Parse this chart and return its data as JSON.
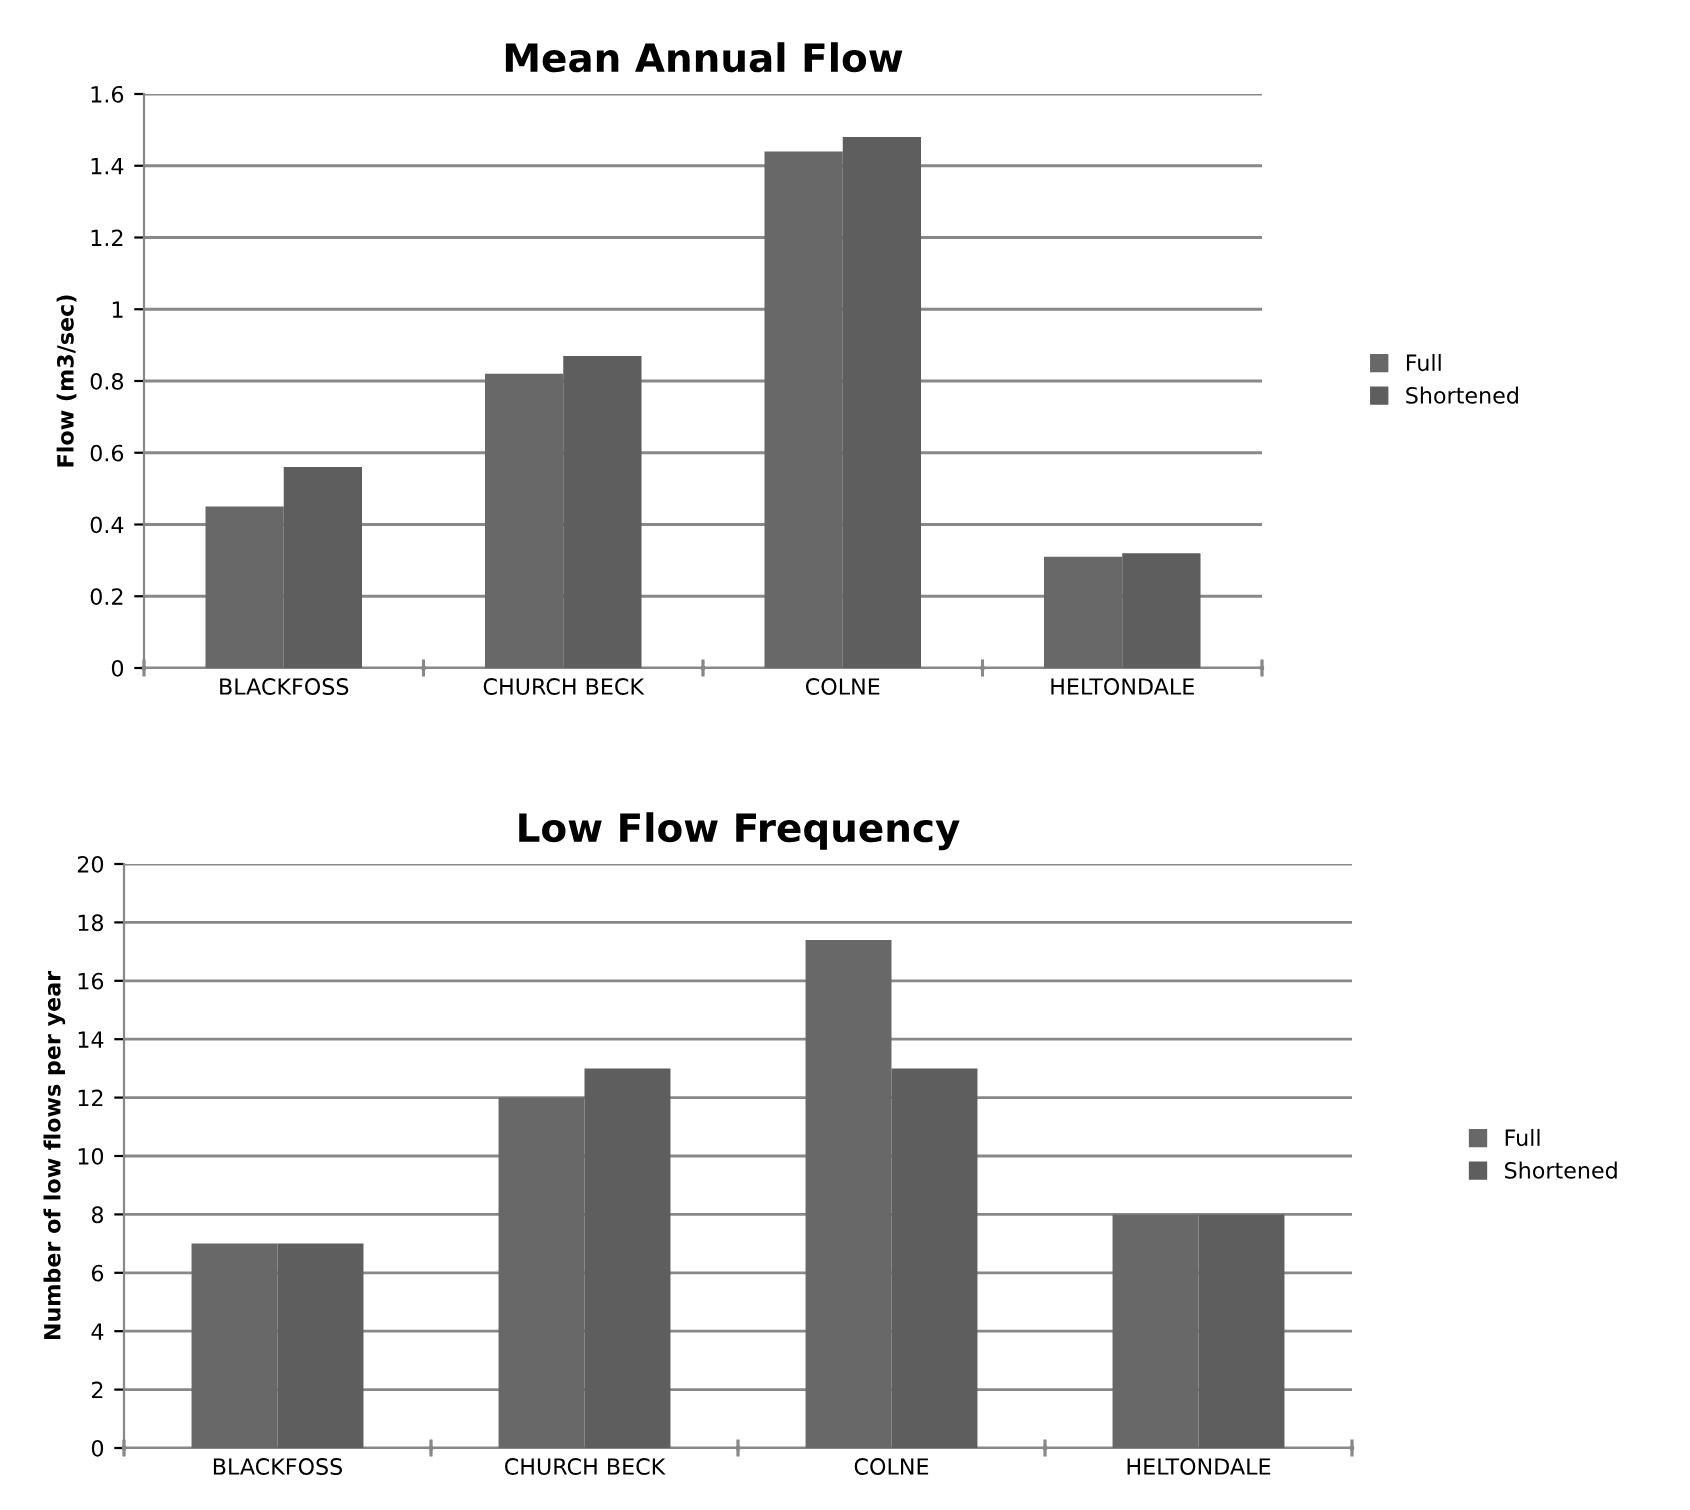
{
  "chart_data": [
    {
      "type": "bar",
      "title": "Mean Annual Flow",
      "ylabel": "Flow (m3/sec)",
      "categories": [
        "BLACKFOSS",
        "CHURCH BECK",
        "COLNE",
        "HELTONDALE"
      ],
      "series": [
        {
          "name": "Full",
          "color": "#686868",
          "values": [
            0.45,
            0.82,
            1.44,
            0.31
          ]
        },
        {
          "name": "Shortened",
          "color": "#5e5e5e",
          "values": [
            0.56,
            0.87,
            1.48,
            0.32
          ]
        }
      ],
      "ylim": [
        0,
        1.6
      ],
      "yticks": [
        0,
        {
          "value": 0.2,
          "label": "0.2"
        },
        {
          "value": 0.4,
          "label": "0.4"
        },
        {
          "value": 0.6,
          "label": "0.6"
        },
        {
          "value": 0.8,
          "label": "0.8"
        },
        1,
        {
          "value": 1.2,
          "label": "1.2"
        },
        {
          "value": 1.4,
          "label": "1.4"
        },
        {
          "value": 1.6,
          "label": "1.6"
        }
      ],
      "grid": "y",
      "legend": "right"
    },
    {
      "type": "bar",
      "title": "Low Flow Frequency",
      "ylabel": "Number of low flows per year",
      "categories": [
        "BLACKFOSS",
        "CHURCH BECK",
        "COLNE",
        "HELTONDALE"
      ],
      "series": [
        {
          "name": "Full",
          "color": "#686868",
          "values": [
            7,
            12,
            17.4,
            8
          ]
        },
        {
          "name": "Shortened",
          "color": "#5e5e5e",
          "values": [
            7,
            13,
            13,
            8
          ]
        }
      ],
      "ylim": [
        0,
        20
      ],
      "yticks": [
        0,
        2,
        4,
        6,
        8,
        10,
        12,
        14,
        16,
        18,
        20
      ],
      "grid": "y",
      "legend": "right"
    }
  ]
}
